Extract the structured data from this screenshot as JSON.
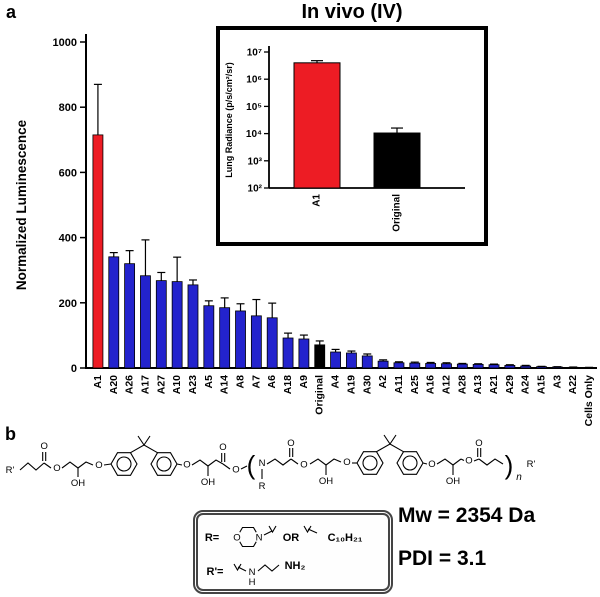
{
  "panels": {
    "a": "a",
    "b": "b"
  },
  "chart_data": [
    {
      "type": "bar",
      "title": "",
      "xlabel": "",
      "ylabel": "Normalized Luminescence",
      "ylim": [
        0,
        1000
      ],
      "yticks": [
        0,
        200,
        400,
        600,
        800,
        1000
      ],
      "grid": false,
      "legend_position": "none",
      "categories": [
        "A1",
        "A20",
        "A26",
        "A17",
        "A27",
        "A10",
        "A23",
        "A5",
        "A14",
        "A8",
        "A7",
        "A6",
        "A18",
        "A9",
        "Original",
        "A4",
        "A19",
        "A30",
        "A2",
        "A11",
        "A25",
        "A16",
        "A12",
        "A28",
        "A13",
        "A21",
        "A29",
        "A24",
        "A15",
        "A3",
        "A22",
        "Cells Only"
      ],
      "values": [
        715,
        341,
        320,
        283,
        268,
        265,
        255,
        191,
        185,
        175,
        160,
        154,
        92,
        89,
        71,
        49,
        46,
        37,
        21,
        16,
        15,
        14,
        13,
        12,
        11,
        10,
        8,
        6,
        4,
        3,
        2,
        1
      ],
      "errors": [
        155,
        13,
        40,
        110,
        25,
        75,
        15,
        15,
        30,
        22,
        50,
        45,
        15,
        12,
        12,
        8,
        6,
        6,
        4,
        3,
        3,
        3,
        3,
        2,
        2,
        2,
        2,
        2,
        1,
        1,
        1,
        1
      ],
      "bar_colors": {
        "A1": "#ed1c24",
        "Original": "#000000",
        "default": "#2323cd"
      }
    },
    {
      "type": "bar",
      "title": "In vivo (IV)",
      "ylabel": "Lung Radiance  (p/s/cm²/sr)",
      "scale": "log",
      "ylim_exp": [
        2,
        7
      ],
      "ytick_labels": [
        "10²",
        "10³",
        "10⁴",
        "10⁵",
        "10⁶",
        "10⁷"
      ],
      "grid": false,
      "legend_position": "none",
      "categories": [
        "A1",
        "Original"
      ],
      "values": [
        4000000,
        10500
      ],
      "errors_upper": [
        800000,
        5500
      ],
      "colors": [
        "#ed1c24",
        "#000000"
      ]
    }
  ],
  "structure": {
    "r_prime": "R'",
    "o": "O",
    "oh": "OH",
    "n": "N",
    "r": "R",
    "sub_n": "n",
    "paren_open": "(",
    "paren_close": ")"
  },
  "legend": {
    "r_label": "R=",
    "o": "O",
    "n": "N",
    "or_label": "OR",
    "c10h21": "C₁₀H₂₁",
    "r_prime_label": "R'=",
    "h": "H",
    "nh2": "NH₂"
  },
  "results": {
    "mw": "Mw = 2354 Da",
    "pdi": "PDI = 3.1"
  }
}
